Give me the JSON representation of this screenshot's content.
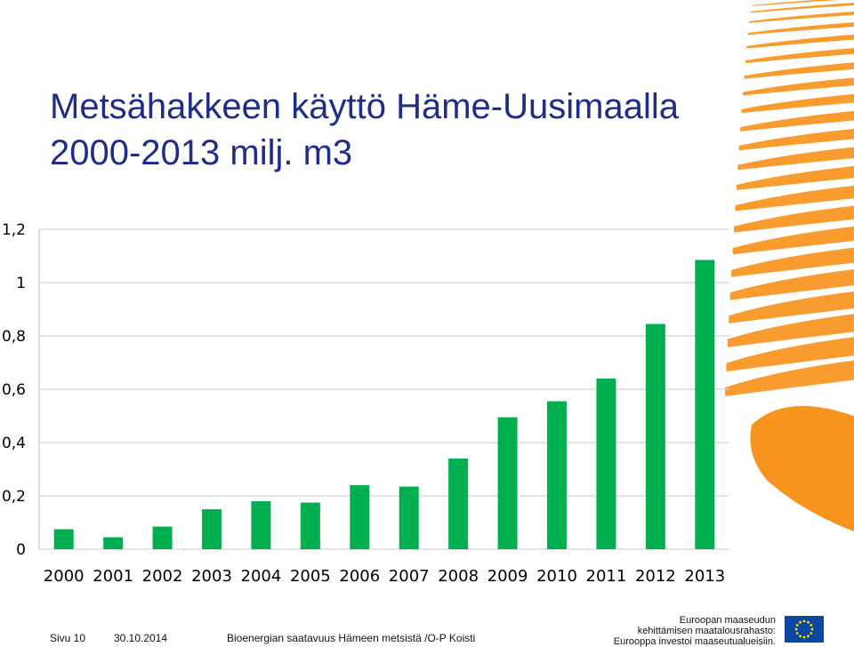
{
  "slide": {
    "title_line1": "Metsähakkeen käyttö Häme-Uusimaalla",
    "title_line2": "2000-2013  milj. m3"
  },
  "chart_data": {
    "type": "bar",
    "categories": [
      "2000",
      "2001",
      "2002",
      "2003",
      "2004",
      "2005",
      "2006",
      "2007",
      "2008",
      "2009",
      "2010",
      "2011",
      "2012",
      "2013"
    ],
    "values": [
      0.075,
      0.045,
      0.085,
      0.15,
      0.18,
      0.175,
      0.24,
      0.235,
      0.34,
      0.495,
      0.555,
      0.64,
      0.845,
      1.085
    ],
    "ylim": [
      0,
      1.2
    ],
    "yticks": [
      0,
      0.2,
      0.4,
      0.6,
      0.8,
      1,
      1.2
    ],
    "ytick_labels": [
      "0",
      "0,2",
      "0,4",
      "0,6",
      "0,8",
      "1",
      "1,2"
    ],
    "bar_color": "#00b050",
    "grid": true,
    "legend": "none"
  },
  "footer": {
    "page": "Sivu 10",
    "date": "30.10.2014",
    "source": "Bioenergian saatavuus Hämeen metsistä /O-P Koisti",
    "eu_line1": "Euroopan maaseudun",
    "eu_line2": "kehittämisen maatalousrahasto:",
    "eu_line3": "Eurooppa investoi maaseutualueisiin."
  },
  "colors": {
    "title": "#1f2d86",
    "accent_orange": "#f7941d",
    "eu_blue": "#0e47a1",
    "eu_star": "#ffdd00"
  },
  "decoration": {
    "icon": "orange-swoosh-graphic",
    "eu_icon": "eu-flag-icon"
  }
}
